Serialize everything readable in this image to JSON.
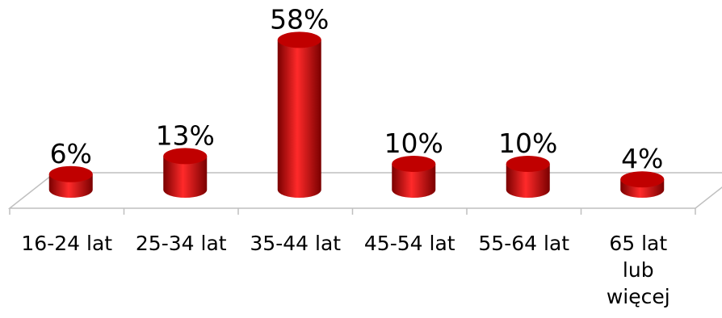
{
  "chart_data": {
    "type": "bar",
    "style": "3d-cylinder",
    "categories": [
      "16-24 lat",
      "25-34 lat",
      "35-44 lat",
      "45-54 lat",
      "55-64 lat",
      "65 lat lub więcej"
    ],
    "category_lines": [
      [
        "16-24 lat"
      ],
      [
        "25-34 lat"
      ],
      [
        "35-44 lat"
      ],
      [
        "45-54 lat"
      ],
      [
        "55-64 lat"
      ],
      [
        "65 lat",
        "lub",
        "więcej"
      ]
    ],
    "values": [
      6,
      13,
      58,
      10,
      10,
      4
    ],
    "value_labels": [
      "6%",
      "13%",
      "58%",
      "10%",
      "10%",
      "4%"
    ],
    "unit": "%",
    "title": "",
    "xlabel": "",
    "ylabel": "",
    "ylim": [
      0,
      60
    ],
    "grid": false,
    "legend": "none",
    "colors": {
      "bar": "#c00000",
      "bar_light": "#ff2a2a",
      "bar_dark": "#7a0000",
      "floor_line": "#bfbfbf"
    }
  }
}
